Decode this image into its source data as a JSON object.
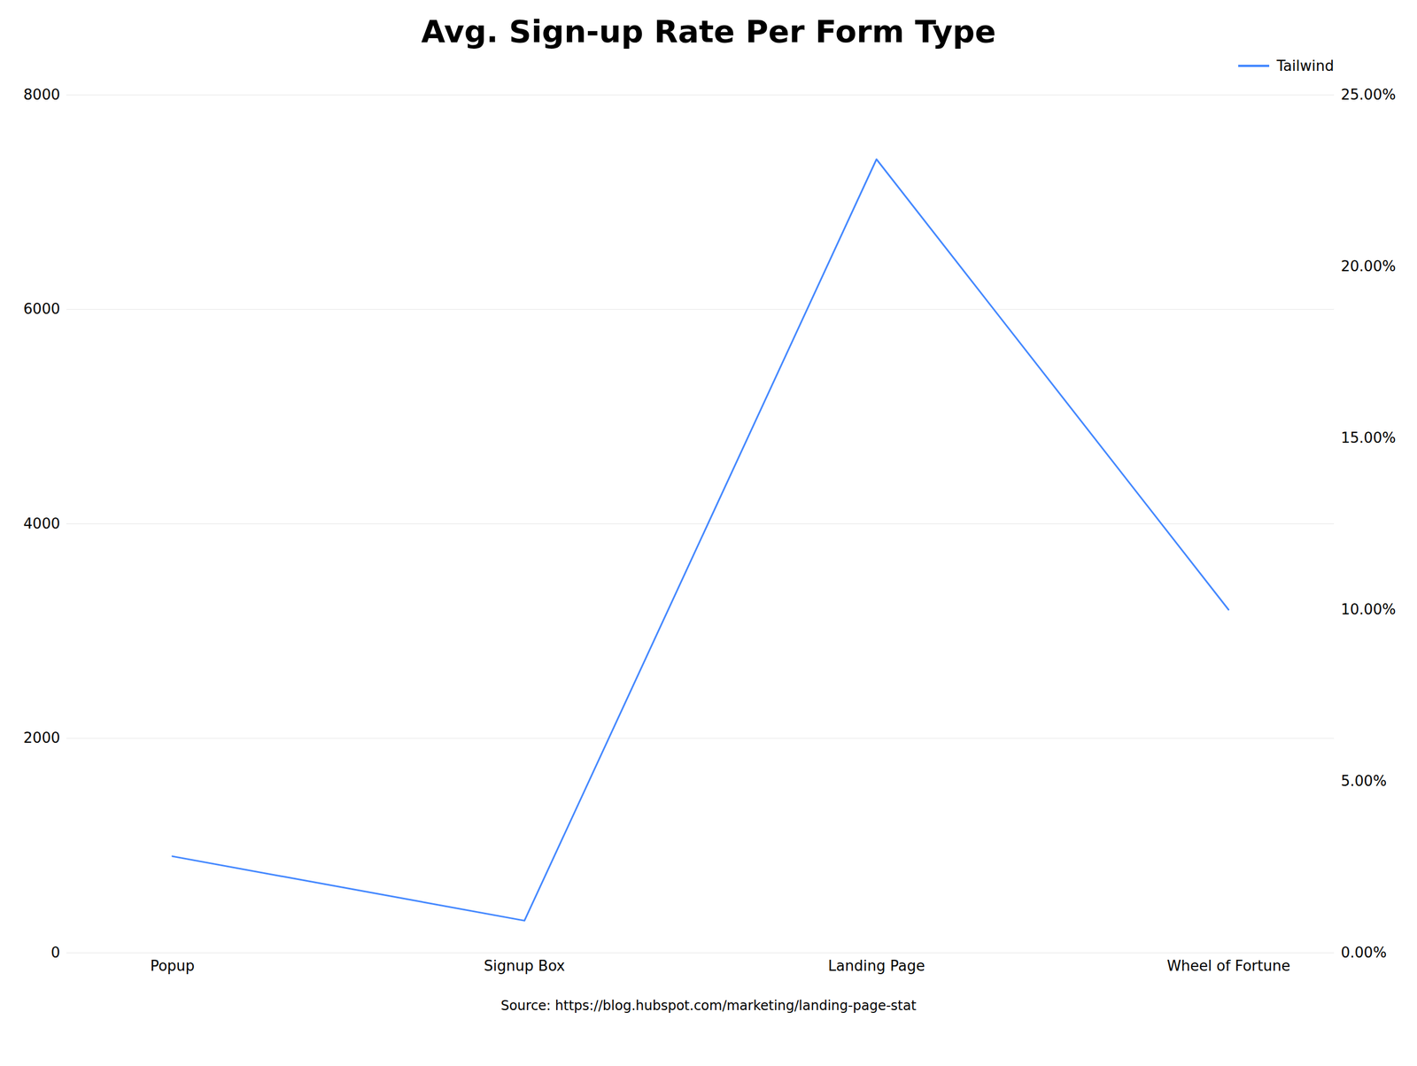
{
  "chart_data": {
    "type": "line",
    "title": "Avg. Sign-up Rate Per Form Type",
    "caption": "Source: https://blog.hubspot.com/marketing/landing-page-stat",
    "categories": [
      "Popup",
      "Signup Box",
      "Landing Page",
      "Wheel of Fortune"
    ],
    "series": [
      {
        "name": "Tailwind",
        "color": "#4488ff",
        "values": [
          900,
          300,
          7400,
          3200
        ]
      }
    ],
    "ylim": [
      0,
      8000
    ],
    "yticks": [
      0,
      2000,
      4000,
      6000,
      8000
    ],
    "y2lim": [
      0,
      25.0
    ],
    "y2ticks": [
      {
        "value": 0.0,
        "label": "0.00%"
      },
      {
        "value": 5.0,
        "label": "5.00%"
      },
      {
        "value": 10.0,
        "label": "10.00%"
      },
      {
        "value": 15.0,
        "label": "15.00%"
      },
      {
        "value": 20.0,
        "label": "20.00%"
      },
      {
        "value": 25.0,
        "label": "25.00%"
      }
    ],
    "grid": true,
    "legend": "upper right"
  }
}
